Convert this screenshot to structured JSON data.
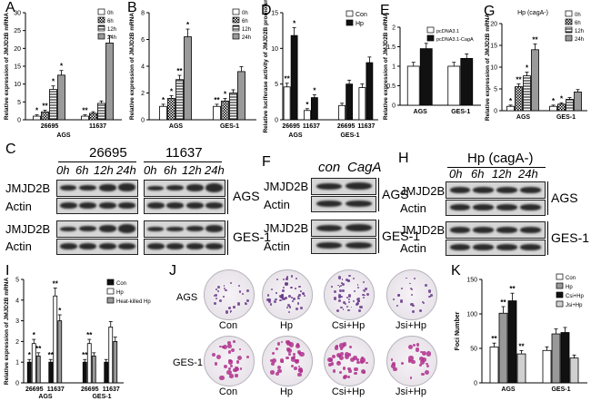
{
  "panels": {
    "A": {
      "label": "A"
    },
    "B": {
      "label": "B"
    },
    "C": {
      "label": "C"
    },
    "D": {
      "label": "D"
    },
    "E": {
      "label": "E"
    },
    "F": {
      "label": "F"
    },
    "G": {
      "label": "G"
    },
    "H": {
      "label": "H"
    },
    "I": {
      "label": "I"
    },
    "J": {
      "label": "J"
    },
    "K": {
      "label": "K"
    }
  },
  "blot_C": {
    "strains": [
      "26695",
      "11637"
    ],
    "times": [
      "0h",
      "6h",
      "12h",
      "24h"
    ],
    "proteins": [
      "JMJD2B",
      "Actin",
      "JMJD2B",
      "Actin"
    ],
    "cells": [
      "AGS",
      "GES-1"
    ]
  },
  "blot_F": {
    "lanes": [
      "con",
      "CagA"
    ],
    "proteins": [
      "JMJD2B",
      "Actin",
      "JMJD2B",
      "Actin"
    ],
    "cells": [
      "AGS",
      "GES-1"
    ]
  },
  "blot_H": {
    "title": "Hp (cagA-)",
    "times": [
      "0h",
      "6h",
      "12h",
      "24h"
    ],
    "proteins": [
      "JMJD2B",
      "Actin",
      "JMJD2B",
      "Actin"
    ],
    "cells": [
      "AGS",
      "GES-1"
    ]
  },
  "colony_J": {
    "rows": [
      "AGS",
      "GES-1"
    ],
    "columns": [
      "Con",
      "Hp",
      "Csi+Hp",
      "Jsi+Hp"
    ]
  },
  "colors": {
    "white": "#ffffff",
    "black": "#111111",
    "gray": "#9a9a9a",
    "light": "#d8d8d8"
  },
  "chart_data": [
    {
      "panel": "A",
      "type": "bar",
      "ylabel": "Relative expression of JMJD2B mRNA",
      "groups": [
        "26695",
        "11637"
      ],
      "group_label": "AGS",
      "legend": [
        "0h",
        "6h",
        "12h",
        "24h"
      ],
      "ylim": [
        0,
        30
      ],
      "yticks": [
        0,
        5,
        10,
        15,
        20,
        25,
        30
      ],
      "series": [
        {
          "name": "0h",
          "values": [
            1.0,
            1.0
          ]
        },
        {
          "name": "6h",
          "values": [
            2.2,
            1.8
          ]
        },
        {
          "name": "12h",
          "values": [
            8.5,
            4.6
          ]
        },
        {
          "name": "24h",
          "values": [
            12.5,
            21.5
          ]
        }
      ],
      "annotations": [
        "*",
        "**",
        "*",
        "*",
        "**"
      ]
    },
    {
      "panel": "B",
      "type": "bar",
      "ylabel": "Relative expression of JMJD2B mRNA",
      "groups": [
        "AGS",
        "GES-1"
      ],
      "legend": [
        "0h",
        "6h",
        "12h",
        "24h"
      ],
      "ylim": [
        0,
        8
      ],
      "yticks": [
        0,
        2,
        4,
        6,
        8
      ],
      "series": [
        {
          "name": "0h",
          "values": [
            1.0,
            1.0
          ]
        },
        {
          "name": "6h",
          "values": [
            1.6,
            1.4
          ]
        },
        {
          "name": "12h",
          "values": [
            3.0,
            2.0
          ]
        },
        {
          "name": "24h",
          "values": [
            6.2,
            3.6
          ]
        }
      ],
      "annotations": [
        "*",
        "*",
        "**",
        "*",
        "**",
        "*"
      ]
    },
    {
      "panel": "D",
      "type": "bar",
      "ylabel": "Relative luciferase activity of JMJD2B promoter",
      "groups": [
        "26695",
        "11637",
        "26695",
        "11637"
      ],
      "group_labels": [
        "AGS",
        "GES-1"
      ],
      "legend": [
        "Con",
        "Hp"
      ],
      "ylim": [
        0,
        15
      ],
      "yticks": [
        0,
        5,
        10,
        15
      ],
      "series": [
        {
          "name": "Con",
          "values": [
            4.6,
            1.3,
            2.0,
            4.5
          ]
        },
        {
          "name": "Hp",
          "values": [
            11.8,
            3.1,
            5.0,
            8.0
          ]
        }
      ],
      "annotations": [
        "**",
        "*",
        "*",
        "*"
      ]
    },
    {
      "panel": "E",
      "type": "bar",
      "ylabel": "Relative expression of JMJD2B mRNA",
      "groups": [
        "AGS",
        "GES-1"
      ],
      "legend": [
        "pcDNA3.1",
        "pcDNA3.1-CagA"
      ],
      "ylim": [
        0,
        2.0
      ],
      "yticks": [
        0,
        0.5,
        1.0,
        1.5,
        2.0
      ],
      "series": [
        {
          "name": "pcDNA3.1",
          "values": [
            1.0,
            1.0
          ]
        },
        {
          "name": "pcDNA3.1-CagA",
          "values": [
            1.45,
            1.2
          ]
        }
      ]
    },
    {
      "panel": "G",
      "type": "bar",
      "title": "Hp (cagA-)",
      "ylabel": "Relative expression of JMJD2B mRNA",
      "groups": [
        "AGS",
        "GES-1"
      ],
      "legend": [
        "0h",
        "6h",
        "12h",
        "24h"
      ],
      "ylim": [
        0,
        20
      ],
      "yticks": [
        0,
        5,
        10,
        15,
        20
      ],
      "series": [
        {
          "name": "0h",
          "values": [
            1.0,
            1.0
          ]
        },
        {
          "name": "6h",
          "values": [
            5.5,
            1.5
          ]
        },
        {
          "name": "12h",
          "values": [
            8.0,
            2.6
          ]
        },
        {
          "name": "24h",
          "values": [
            14.0,
            4.3
          ]
        }
      ],
      "annotations": [
        "*",
        "**",
        "*",
        "**",
        "*",
        "*"
      ]
    },
    {
      "panel": "I",
      "type": "bar",
      "ylabel": "Relative expression of JMJD2B mRNA",
      "groups": [
        "26695",
        "11637",
        "26695",
        "11637"
      ],
      "group_labels": [
        "AGS",
        "GES-1"
      ],
      "legend": [
        "Con",
        "Hp",
        "Heat-killed Hp"
      ],
      "ylim": [
        0,
        5
      ],
      "yticks": [
        0,
        1,
        2,
        3,
        4,
        5
      ],
      "series": [
        {
          "name": "Con",
          "values": [
            1.0,
            1.0,
            1.0,
            1.0
          ]
        },
        {
          "name": "Hp",
          "values": [
            1.9,
            4.2,
            1.9,
            2.7
          ]
        },
        {
          "name": "Heat-killed Hp",
          "values": [
            1.3,
            3.0,
            1.3,
            2.0
          ]
        }
      ],
      "annotations": [
        "*",
        "*",
        "**",
        "**",
        "**",
        "*",
        "**",
        "**"
      ]
    },
    {
      "panel": "K",
      "type": "bar",
      "ylabel": "Foci Number",
      "groups": [
        "AGS",
        "GES-1"
      ],
      "legend": [
        "Con",
        "Hp",
        "Csi+Hp",
        "Jsi+Hp"
      ],
      "ylim": [
        0,
        150
      ],
      "yticks": [
        0,
        50,
        100,
        150
      ],
      "series": [
        {
          "name": "Con",
          "values": [
            52,
            47
          ]
        },
        {
          "name": "Hp",
          "values": [
            101,
            71
          ]
        },
        {
          "name": "Csi+Hp",
          "values": [
            119,
            73
          ]
        },
        {
          "name": "Jsi+Hp",
          "values": [
            42,
            36
          ]
        }
      ],
      "annotations": [
        "**",
        "**",
        "**",
        "**"
      ]
    }
  ]
}
